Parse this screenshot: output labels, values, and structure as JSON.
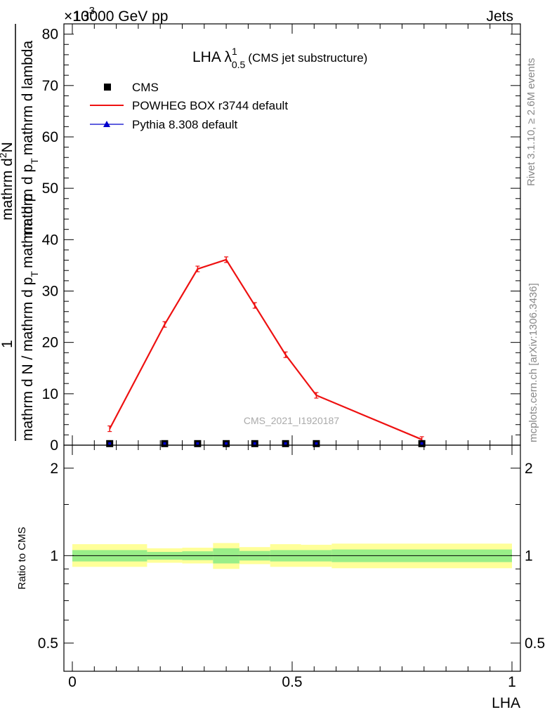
{
  "header": {
    "left": "13000 GeV pp",
    "right": "Jets",
    "exponent": "×10",
    "exponent_power": "3"
  },
  "side_labels": {
    "rivet": "Rivet 3.1.10, ≥ 2.6M events",
    "mcplots": "mcplots.cern.ch [arXiv:1306.3436]"
  },
  "watermark": "CMS_2021_I1920187",
  "chart_data": [
    {
      "type": "line",
      "title": "LHA λ",
      "title_sup": "1",
      "title_sub": "0.5",
      "subtitle": "(CMS jet substructure)",
      "xlabel": "",
      "ylabel": "1 / mathrm d N / mathrm d p_T mathrm d^2N / mathrm d p_T mathrm d lambda",
      "ylabel_parts": {
        "numerator": "1",
        "denominator_line1": "mathrm d N / mathrm d p",
        "denominator_line1_sub": "T",
        "fraction2_num": "mathrm d",
        "fraction2_num_sup": "2",
        "fraction2_num_tail": "N",
        "fraction2_den": "mathrm d p",
        "fraction2_den_sub": "T",
        "fraction2_den_tail": "mathrm d lambda"
      },
      "xlim": [
        0,
        1
      ],
      "ylim": [
        0,
        82
      ],
      "y_ticks": [
        0,
        10,
        20,
        30,
        40,
        50,
        60,
        70,
        80
      ],
      "y_tick_labels": [
        "0",
        "10",
        "20",
        "30",
        "40",
        "50",
        "60",
        "70",
        "80"
      ],
      "y_scale_note": "×10^3",
      "legend_position": "top-left",
      "series": [
        {
          "name": "CMS",
          "marker": "square",
          "color": "#000000",
          "x": [
            0.085,
            0.21,
            0.285,
            0.35,
            0.415,
            0.485,
            0.555,
            0.795
          ],
          "y": [
            0.3,
            0.3,
            0.3,
            0.3,
            0.3,
            0.3,
            0.3,
            0.3
          ]
        },
        {
          "name": "POWHEG BOX r3744 default",
          "marker": "line",
          "color": "#ee1111",
          "x": [
            0.085,
            0.21,
            0.285,
            0.35,
            0.415,
            0.485,
            0.555,
            0.795
          ],
          "y": [
            3.2,
            23.5,
            34.3,
            36.1,
            27.2,
            17.6,
            9.7,
            1.1
          ]
        },
        {
          "name": "Pythia 8.308 default",
          "marker": "triangle",
          "color": "#0000cc",
          "x": [],
          "y": []
        }
      ]
    },
    {
      "type": "area",
      "title": "",
      "xlabel": "LHA",
      "ylabel": "Ratio to CMS",
      "xlim": [
        0,
        1
      ],
      "ylim": [
        0.4,
        2.4
      ],
      "log_y": true,
      "x_ticks": [
        0,
        0.5,
        1
      ],
      "x_tick_labels": [
        "0",
        "0.5",
        "1"
      ],
      "y_ticks": [
        0.5,
        1,
        2
      ],
      "y_tick_labels": [
        "0.5",
        "1",
        "2"
      ],
      "reference_line": 1,
      "bins": [
        {
          "x0": 0.0,
          "x1": 0.17,
          "stat_lo": 0.955,
          "stat_hi": 1.045,
          "tot_lo": 0.915,
          "tot_hi": 1.095
        },
        {
          "x0": 0.17,
          "x1": 0.25,
          "stat_lo": 0.968,
          "stat_hi": 1.03,
          "tot_lo": 0.945,
          "tot_hi": 1.06
        },
        {
          "x0": 0.25,
          "x1": 0.32,
          "stat_lo": 0.965,
          "stat_hi": 1.035,
          "tot_lo": 0.94,
          "tot_hi": 1.065
        },
        {
          "x0": 0.32,
          "x1": 0.38,
          "stat_lo": 0.94,
          "stat_hi": 1.06,
          "tot_lo": 0.9,
          "tot_hi": 1.105
        },
        {
          "x0": 0.38,
          "x1": 0.45,
          "stat_lo": 0.962,
          "stat_hi": 1.038,
          "tot_lo": 0.935,
          "tot_hi": 1.07
        },
        {
          "x0": 0.45,
          "x1": 0.52,
          "stat_lo": 0.955,
          "stat_hi": 1.045,
          "tot_lo": 0.915,
          "tot_hi": 1.095
        },
        {
          "x0": 0.52,
          "x1": 0.59,
          "stat_lo": 0.955,
          "stat_hi": 1.045,
          "tot_lo": 0.915,
          "tot_hi": 1.09
        },
        {
          "x0": 0.59,
          "x1": 1.0,
          "stat_lo": 0.95,
          "stat_hi": 1.05,
          "tot_lo": 0.905,
          "tot_hi": 1.1
        }
      ]
    }
  ],
  "colors": {
    "stat_band": "#99ee88",
    "tot_band": "#ffff99",
    "powheg": "#ee1111",
    "pythia": "#0000cc"
  }
}
